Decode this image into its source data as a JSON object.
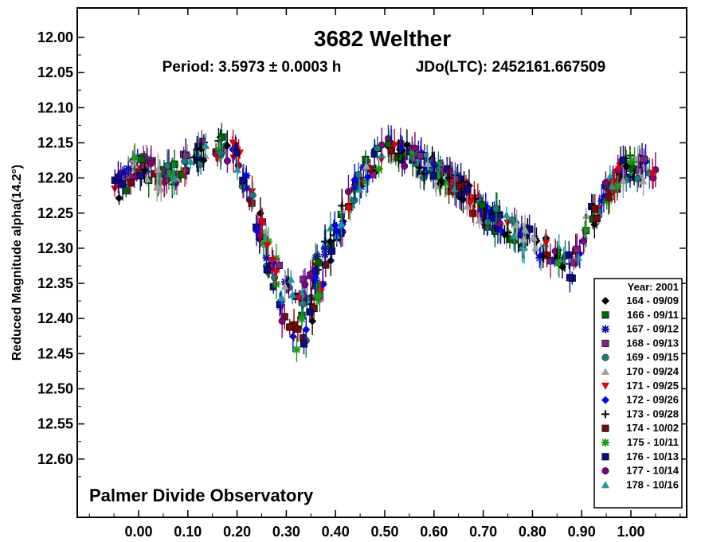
{
  "chart_data": {
    "type": "scatter",
    "title": "3682 Welther",
    "subtitle_period": "Period: 3.5973 ± 0.0003 h",
    "subtitle_epoch": "JDo(LTC): 2452161.667509",
    "ylabel": "Reduced Magnitude alpha(14.2°)",
    "xlabel": "",
    "annotation": "Palmer Divide Observatory",
    "xlim": [
      -0.125,
      1.125
    ],
    "ylim": [
      12.65,
      11.95
    ],
    "y_inverted": true,
    "grid": false,
    "x_ticks": [
      0.0,
      0.1,
      0.2,
      0.3,
      0.4,
      0.5,
      0.6,
      0.7,
      0.8,
      0.9,
      1.0
    ],
    "x_tick_labels": [
      "0.00",
      "0.10",
      "0.20",
      "0.30",
      "0.40",
      "0.50",
      "0.60",
      "0.70",
      "0.80",
      "0.90",
      "1.00"
    ],
    "y_ticks": [
      12.0,
      12.05,
      12.1,
      12.15,
      12.2,
      12.25,
      12.3,
      12.35,
      12.4,
      12.45,
      12.5,
      12.55,
      12.6
    ],
    "y_tick_labels": [
      "12.00",
      "12.05",
      "12.10",
      "12.15",
      "12.20",
      "12.25",
      "12.30",
      "12.35",
      "12.40",
      "12.45",
      "12.50",
      "12.55",
      "12.60"
    ],
    "legend": {
      "title": "Year: 2001",
      "placement": "bottom-right",
      "entries": [
        {
          "label": "164 - 09/09",
          "marker": "diamond",
          "color": "#000000"
        },
        {
          "label": "166 - 09/11",
          "marker": "square",
          "color": "#006400"
        },
        {
          "label": "167 - 09/12",
          "marker": "asterisk",
          "color": "#1010b0"
        },
        {
          "label": "168 - 09/13",
          "marker": "square",
          "color": "#8b1a8b"
        },
        {
          "label": "169 - 09/15",
          "marker": "circle",
          "color": "#1a7a7a"
        },
        {
          "label": "170 - 09/24",
          "marker": "triangle",
          "color": "#a0a0a0"
        },
        {
          "label": "171 - 09/25",
          "marker": "triangle-down",
          "color": "#e00000"
        },
        {
          "label": "172 - 09/26",
          "marker": "diamond",
          "color": "#0000ff"
        },
        {
          "label": "173 - 09/28",
          "marker": "plus",
          "color": "#000000"
        },
        {
          "label": "174 - 10/02",
          "marker": "square",
          "color": "#7a0a0a"
        },
        {
          "label": "175 - 10/11",
          "marker": "asterisk",
          "color": "#11a011"
        },
        {
          "label": "176 - 10/13",
          "marker": "square",
          "color": "#0a0a8a"
        },
        {
          "label": "177 - 10/14",
          "marker": "circle",
          "color": "#800080"
        },
        {
          "label": "178 - 10/16",
          "marker": "triangle",
          "color": "#1a9a9a"
        }
      ]
    },
    "lightcurve_mean": {
      "phase": [
        -0.05,
        0.0,
        0.05,
        0.1,
        0.15,
        0.2,
        0.25,
        0.3,
        0.33,
        0.35,
        0.4,
        0.45,
        0.5,
        0.55,
        0.6,
        0.65,
        0.7,
        0.75,
        0.8,
        0.85,
        0.88,
        0.9,
        0.95,
        1.0,
        1.05
      ],
      "mag": [
        12.22,
        12.18,
        12.2,
        12.18,
        12.15,
        12.17,
        12.28,
        12.38,
        12.4,
        12.37,
        12.28,
        12.2,
        12.16,
        12.17,
        12.19,
        12.21,
        12.25,
        12.27,
        12.29,
        12.31,
        12.33,
        12.28,
        12.22,
        12.18,
        12.2
      ]
    }
  }
}
